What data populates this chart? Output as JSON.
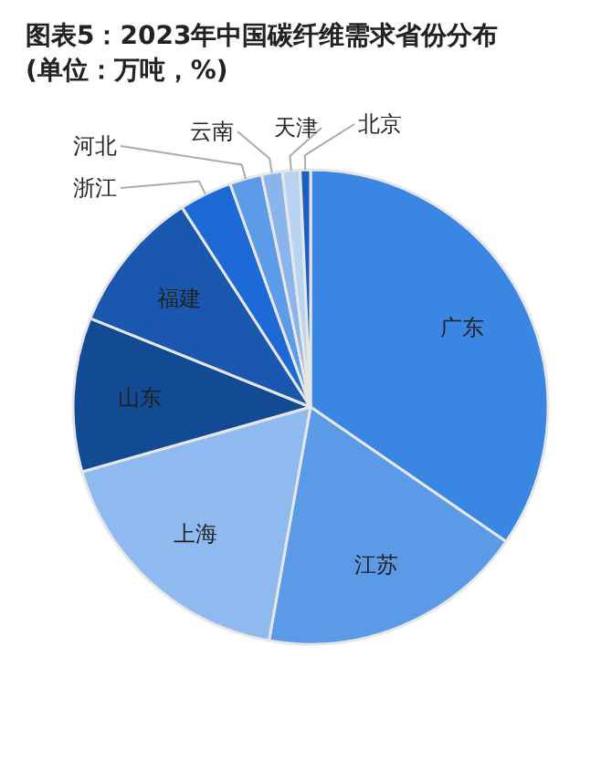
{
  "chart_data": {
    "type": "pie",
    "title": "图表5：2023年中国碳纤维需求省份分布",
    "subtitle": "(单位：万吨，%)",
    "categories": [
      "广东",
      "江苏",
      "上海",
      "山东",
      "福建",
      "浙江",
      "河北",
      "云南",
      "天津",
      "北京"
    ],
    "values": [
      34.6,
      18.2,
      17.8,
      10.5,
      9.8,
      3.6,
      2.2,
      1.4,
      1.2,
      0.7
    ],
    "colors": [
      "#3a86e3",
      "#5b9ae6",
      "#8fbaf0",
      "#134a94",
      "#1a58b0",
      "#1d6ad6",
      "#5c9be8",
      "#8ab5ec",
      "#b8d3f4",
      "#1a5fc4"
    ]
  }
}
